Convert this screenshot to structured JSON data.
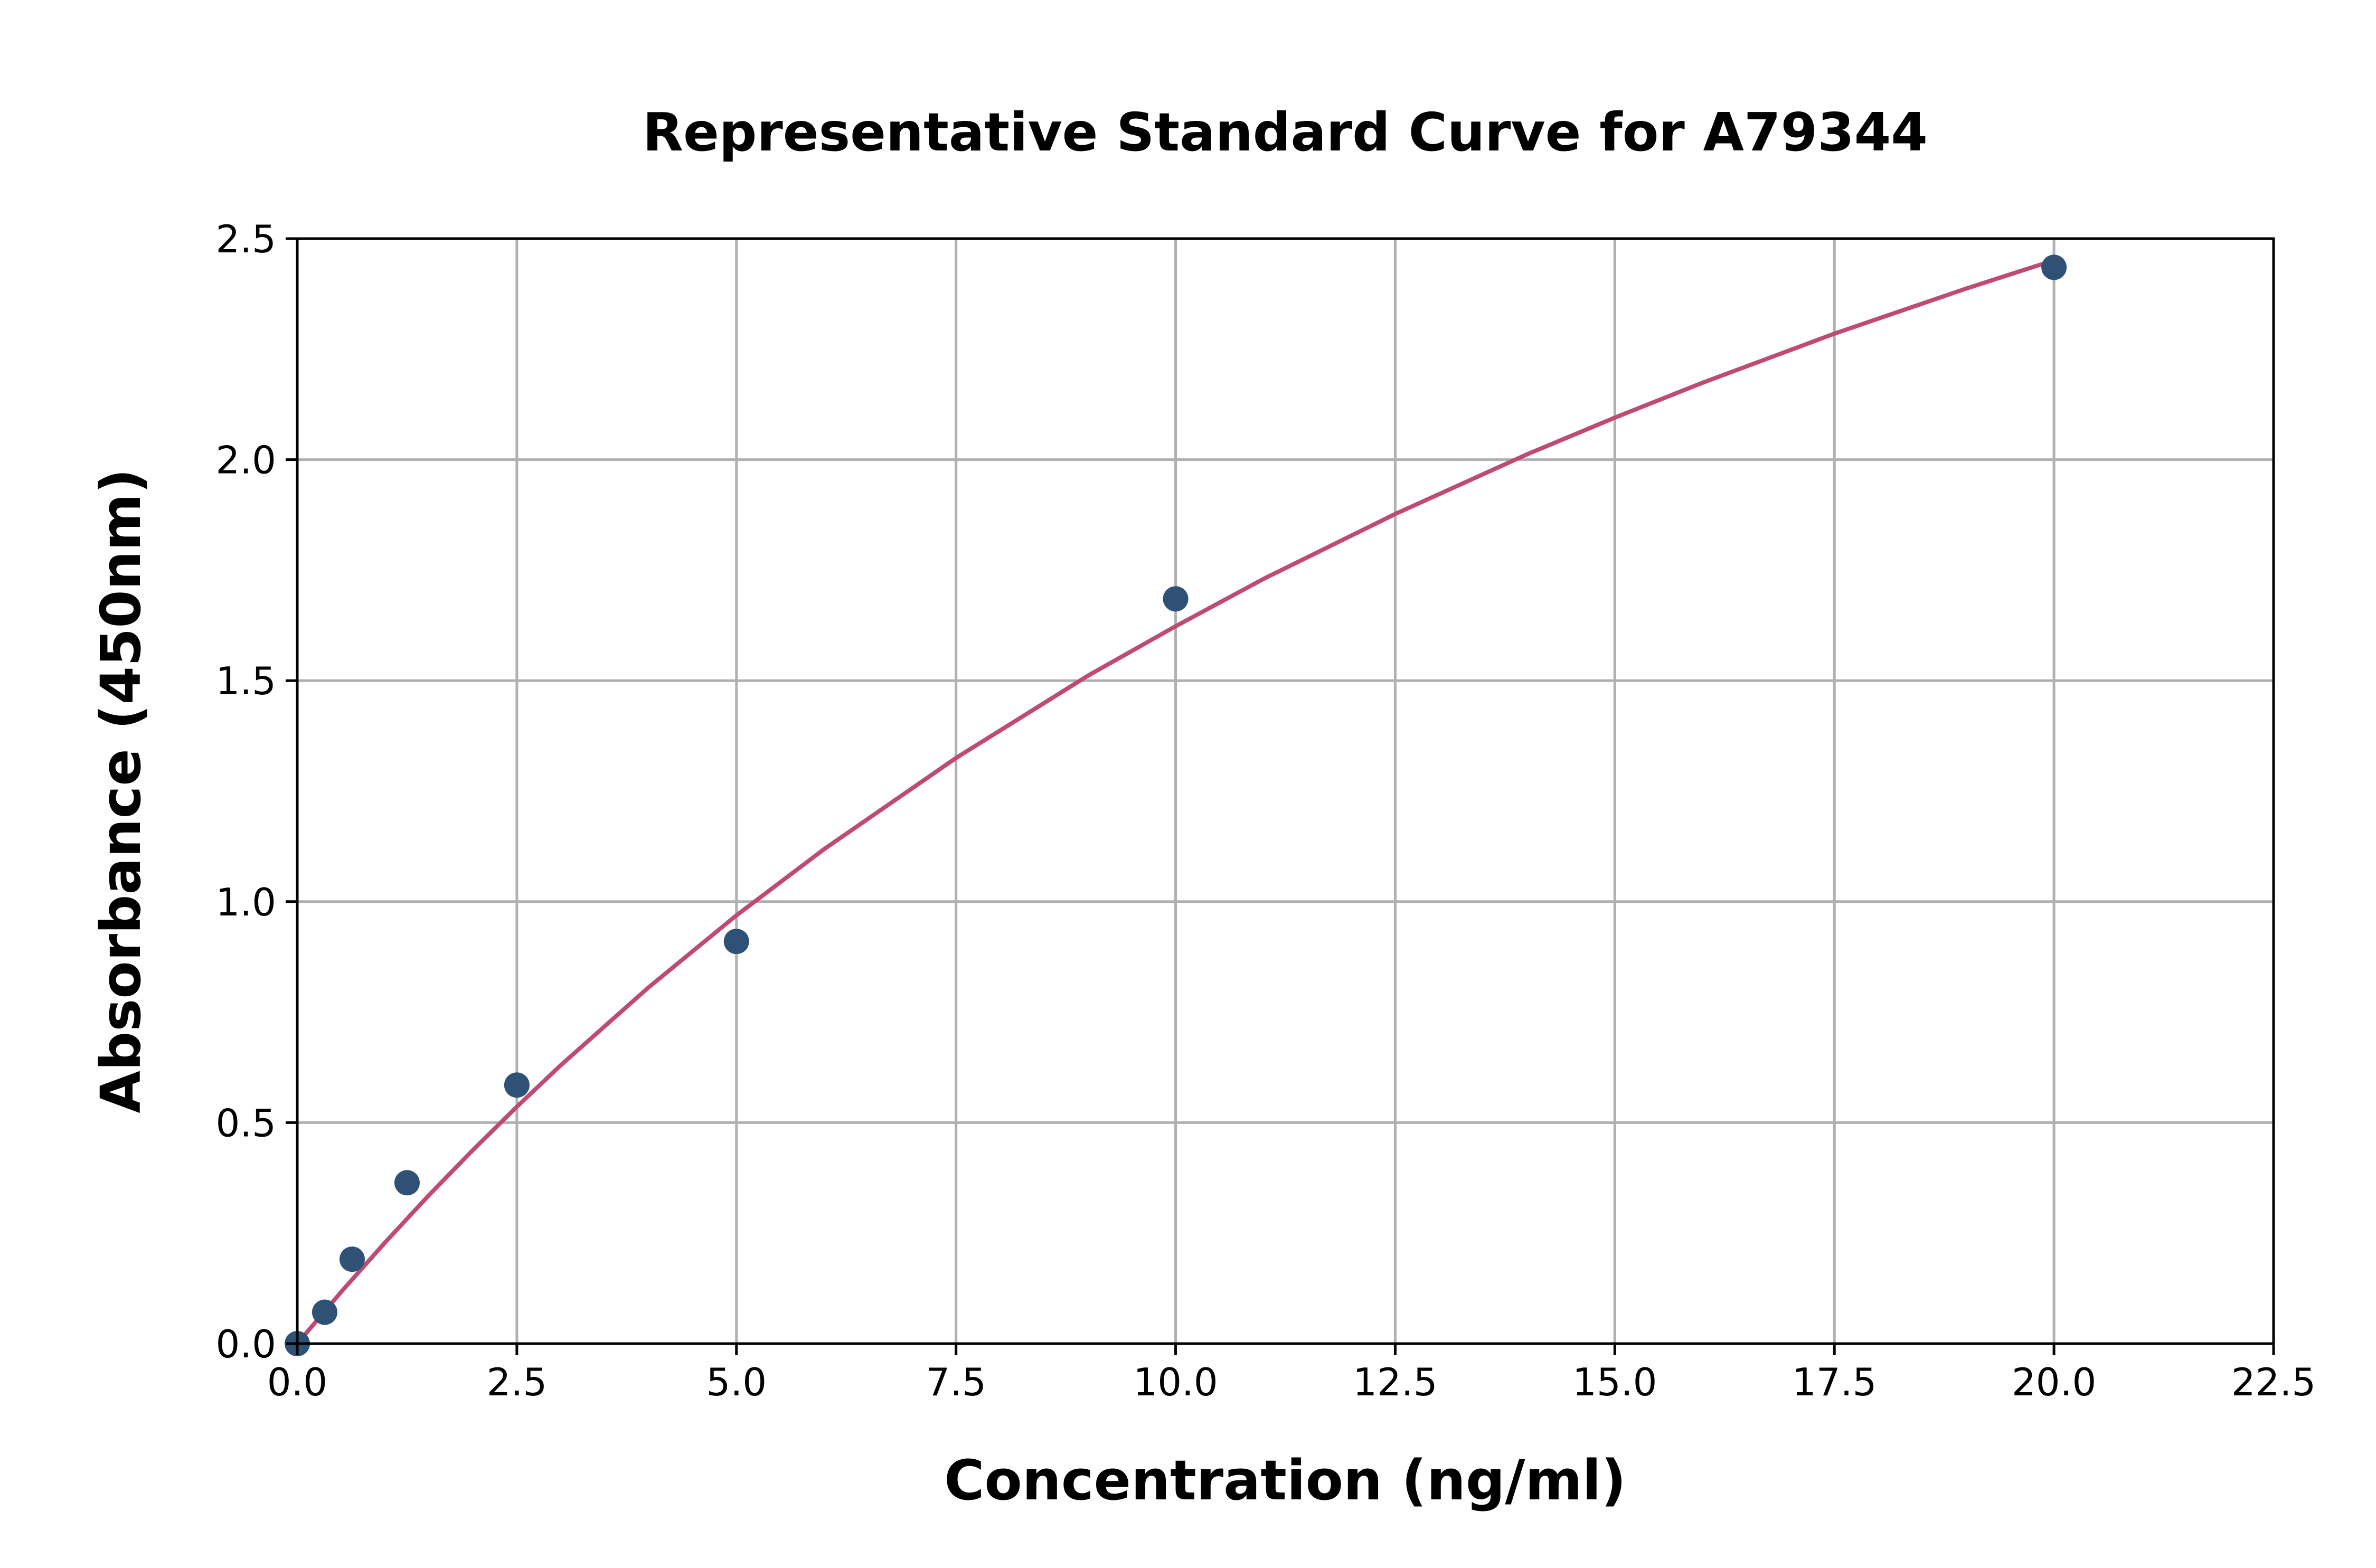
{
  "chart_data": {
    "type": "scatter",
    "title": "Representative Standard Curve for A79344",
    "xlabel": "Concentration (ng/ml)",
    "ylabel": "Absorbance (450nm)",
    "xlim": [
      0,
      22.5
    ],
    "ylim": [
      0,
      2.5
    ],
    "grid": true,
    "x_ticks": [
      "0.0",
      "2.5",
      "5.0",
      "7.5",
      "10.0",
      "12.5",
      "15.0",
      "17.5",
      "20.0",
      "22.5"
    ],
    "y_ticks": [
      "0.0",
      "0.5",
      "1.0",
      "1.5",
      "2.0",
      "2.5"
    ],
    "points": {
      "x": [
        0,
        0.3125,
        0.625,
        1.25,
        2.5,
        5,
        10,
        20
      ],
      "y": [
        0.0,
        0.071,
        0.191,
        0.364,
        0.585,
        0.91,
        1.685,
        2.435
      ]
    },
    "fit_curve": {
      "x": [
        0,
        0.5,
        1,
        1.5,
        2,
        2.5,
        3,
        4,
        5,
        6,
        7.5,
        9,
        10,
        11,
        12.5,
        14,
        15,
        16,
        17.5,
        19,
        20
      ],
      "y": [
        0,
        0.117,
        0.229,
        0.336,
        0.438,
        0.536,
        0.63,
        0.806,
        0.969,
        1.119,
        1.325,
        1.511,
        1.623,
        1.73,
        1.877,
        2.012,
        2.095,
        2.174,
        2.285,
        2.387,
        2.451
      ]
    },
    "colors": {
      "points": "#2e5175",
      "curve": "#c04b72",
      "grid": "#b0b0b0",
      "axes": "#000000"
    }
  }
}
